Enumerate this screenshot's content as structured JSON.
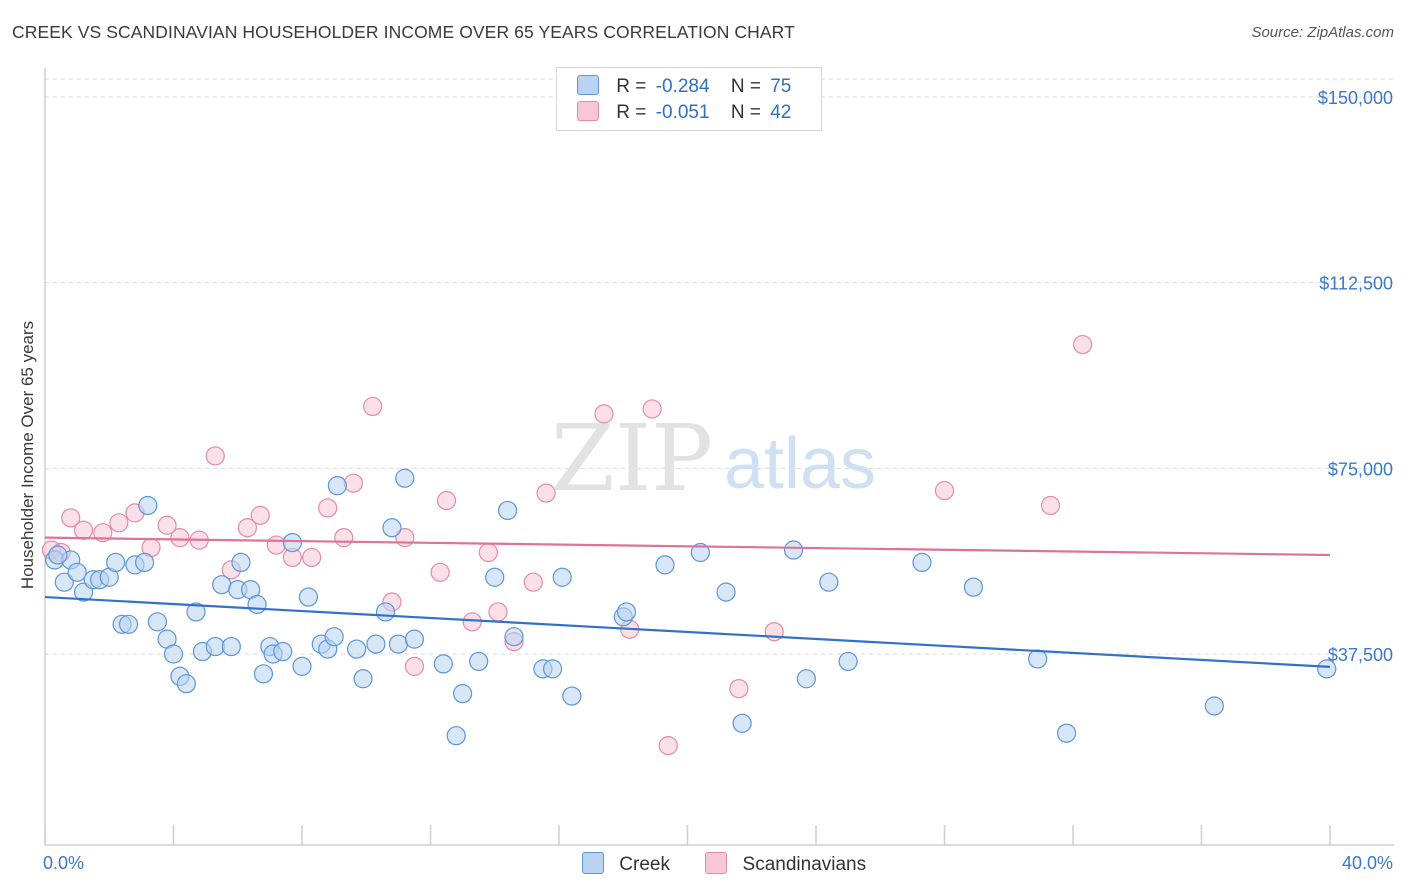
{
  "title": "CREEK VS SCANDINAVIAN HOUSEHOLDER INCOME OVER 65 YEARS CORRELATION CHART",
  "source": "Source: ZipAtlas.com",
  "watermark": {
    "zip": "ZIP",
    "atlas": "atlas"
  },
  "legend": {
    "rows": [
      {
        "r_label": "R =",
        "r_value": "-0.284",
        "n_label": "N =",
        "n_value": "75"
      },
      {
        "r_label": "R =",
        "r_value": "-0.051",
        "n_label": "N =",
        "n_value": "42"
      }
    ]
  },
  "colors": {
    "creek_fill": "#b8d3f3",
    "creek_stroke": "#5d95d6",
    "creek_line": "#2f72c8",
    "scand_fill": "#f8c6d6",
    "scand_stroke": "#e58aa8",
    "scand_line": "#e0719a",
    "tick_text": "#3a78c9",
    "grid": "#d9d9d9"
  },
  "chart_data": {
    "type": "scatter",
    "title": "CREEK VS SCANDINAVIAN HOUSEHOLDER INCOME OVER 65 YEARS CORRELATION CHART",
    "xlabel": "",
    "ylabel": "Householder Income Over 65 years",
    "xlim": [
      0,
      40
    ],
    "ylim": [
      0,
      155000
    ],
    "x_tick_labels": [
      "0.0%",
      "40.0%"
    ],
    "y_ticks": [
      37500,
      75000,
      112500,
      150000
    ],
    "y_tick_labels": [
      "$37,500",
      "$75,000",
      "$112,500",
      "$150,000"
    ],
    "grid": "horizontal dashed",
    "legend_position": "top-center",
    "series": [
      {
        "name": "Creek",
        "r": -0.284,
        "n": 75,
        "trend": {
          "x": [
            0,
            40
          ],
          "y": [
            49000,
            34900
          ]
        },
        "points": [
          [
            0.3,
            56500
          ],
          [
            0.6,
            52000
          ],
          [
            0.8,
            56500
          ],
          [
            1.0,
            54000
          ],
          [
            1.2,
            50000
          ],
          [
            1.5,
            52500
          ],
          [
            1.7,
            52500
          ],
          [
            2.0,
            53000
          ],
          [
            2.2,
            56000
          ],
          [
            2.4,
            43500
          ],
          [
            2.6,
            43500
          ],
          [
            2.8,
            55500
          ],
          [
            3.1,
            56000
          ],
          [
            3.2,
            67500
          ],
          [
            3.5,
            44000
          ],
          [
            3.8,
            40500
          ],
          [
            4.0,
            37500
          ],
          [
            4.2,
            33000
          ],
          [
            4.4,
            31500
          ],
          [
            4.7,
            46000
          ],
          [
            4.9,
            38000
          ],
          [
            5.3,
            39000
          ],
          [
            5.5,
            51500
          ],
          [
            5.8,
            39000
          ],
          [
            6.0,
            50500
          ],
          [
            6.1,
            56000
          ],
          [
            6.4,
            50500
          ],
          [
            6.6,
            47500
          ],
          [
            6.8,
            33500
          ],
          [
            7.0,
            39000
          ],
          [
            7.1,
            37500
          ],
          [
            7.4,
            38000
          ],
          [
            7.7,
            60000
          ],
          [
            8.0,
            35000
          ],
          [
            8.2,
            49000
          ],
          [
            8.6,
            39500
          ],
          [
            8.8,
            38500
          ],
          [
            9.0,
            41000
          ],
          [
            9.1,
            71500
          ],
          [
            9.7,
            38500
          ],
          [
            9.9,
            32500
          ],
          [
            10.3,
            39500
          ],
          [
            10.6,
            46000
          ],
          [
            10.8,
            63000
          ],
          [
            11.0,
            39500
          ],
          [
            11.2,
            73000
          ],
          [
            11.5,
            40500
          ],
          [
            12.4,
            35500
          ],
          [
            12.8,
            21000
          ],
          [
            13.0,
            29500
          ],
          [
            13.5,
            36000
          ],
          [
            14.0,
            53000
          ],
          [
            14.4,
            66500
          ],
          [
            14.6,
            41000
          ],
          [
            15.5,
            34500
          ],
          [
            15.8,
            34500
          ],
          [
            16.1,
            53000
          ],
          [
            16.4,
            29000
          ],
          [
            18.0,
            45000
          ],
          [
            18.1,
            46000
          ],
          [
            19.3,
            55500
          ],
          [
            20.4,
            58000
          ],
          [
            21.2,
            50000
          ],
          [
            21.7,
            23500
          ],
          [
            23.3,
            58500
          ],
          [
            23.7,
            32500
          ],
          [
            24.4,
            52000
          ],
          [
            25.0,
            36000
          ],
          [
            27.3,
            56000
          ],
          [
            28.9,
            51000
          ],
          [
            30.9,
            36500
          ],
          [
            31.8,
            21500
          ],
          [
            36.4,
            27000
          ],
          [
            39.9,
            34500
          ],
          [
            0.4,
            57500
          ]
        ]
      },
      {
        "name": "Scandinavians",
        "r": -0.051,
        "n": 42,
        "trend": {
          "x": [
            0,
            40
          ],
          "y": [
            61000,
            57500
          ]
        },
        "points": [
          [
            0.2,
            58500
          ],
          [
            0.5,
            58000
          ],
          [
            0.8,
            65000
          ],
          [
            1.2,
            62500
          ],
          [
            1.8,
            62000
          ],
          [
            2.3,
            64000
          ],
          [
            2.8,
            66000
          ],
          [
            3.3,
            59000
          ],
          [
            3.8,
            63500
          ],
          [
            4.2,
            61000
          ],
          [
            4.8,
            60500
          ],
          [
            5.3,
            77500
          ],
          [
            5.8,
            54500
          ],
          [
            6.3,
            63000
          ],
          [
            6.7,
            65500
          ],
          [
            7.2,
            59500
          ],
          [
            7.7,
            57000
          ],
          [
            8.3,
            57000
          ],
          [
            8.8,
            67000
          ],
          [
            9.3,
            61000
          ],
          [
            9.6,
            72000
          ],
          [
            10.2,
            87500
          ],
          [
            10.8,
            48000
          ],
          [
            11.2,
            61000
          ],
          [
            11.5,
            35000
          ],
          [
            12.3,
            54000
          ],
          [
            12.5,
            68500
          ],
          [
            13.3,
            44000
          ],
          [
            13.8,
            58000
          ],
          [
            14.1,
            46000
          ],
          [
            14.6,
            40000
          ],
          [
            15.2,
            52000
          ],
          [
            15.6,
            70000
          ],
          [
            17.4,
            86000
          ],
          [
            18.2,
            42500
          ],
          [
            18.9,
            87000
          ],
          [
            19.4,
            19000
          ],
          [
            21.6,
            30500
          ],
          [
            22.7,
            42000
          ],
          [
            28.0,
            70500
          ],
          [
            31.3,
            67500
          ],
          [
            32.3,
            100000
          ]
        ]
      }
    ]
  }
}
